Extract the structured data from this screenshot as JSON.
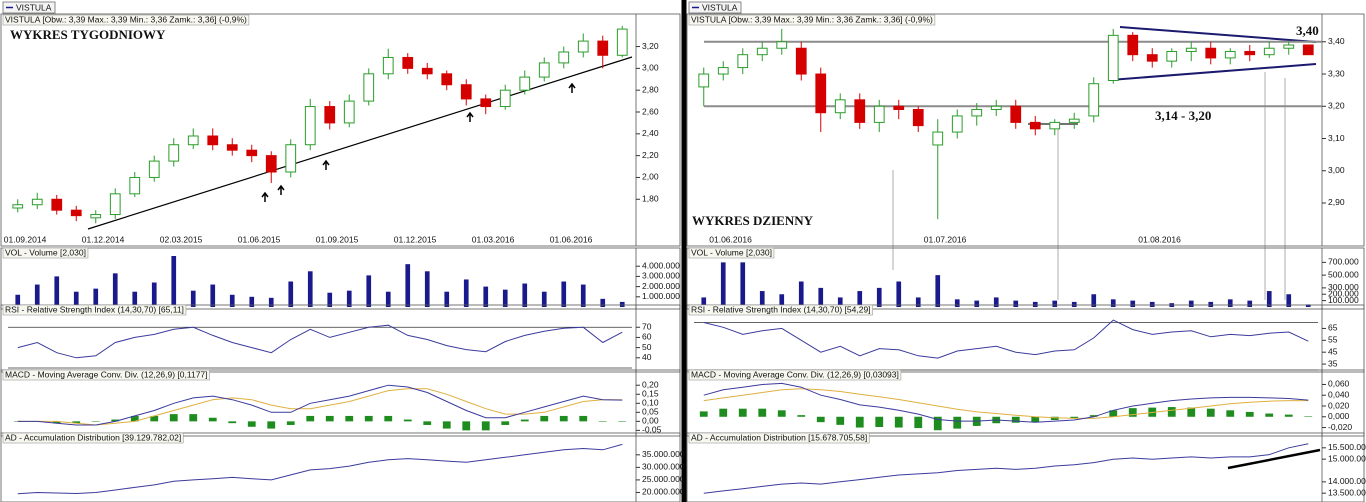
{
  "chart_data": [
    {
      "type": "candlestick",
      "tab": "VISTULA",
      "title": "VISTULA [Obw.: 3,39  Max.: 3,39  Min.: 3,36  Zamk.: 3,36] (-0,9%)",
      "annotations": [
        "WYKRES TYGODNIOWY"
      ],
      "categories": [
        "01.09.2014",
        null,
        null,
        null,
        "01.12.2014",
        null,
        null,
        null,
        "02.03.2015",
        null,
        null,
        null,
        "01.06.2015",
        null,
        null,
        null,
        "01.09.2015",
        null,
        null,
        null,
        "01.12.2015",
        null,
        null,
        null,
        "01.03.2016",
        null,
        null,
        null,
        "01.06.2016",
        null,
        null,
        null
      ],
      "open": [
        1.72,
        1.75,
        1.8,
        1.7,
        1.63,
        1.66,
        1.85,
        2.0,
        2.15,
        2.3,
        2.38,
        2.3,
        2.25,
        2.2,
        2.05,
        2.3,
        2.65,
        2.5,
        2.7,
        2.95,
        3.1,
        3.0,
        2.95,
        2.85,
        2.72,
        2.65,
        2.8,
        2.92,
        3.05,
        3.15,
        3.25,
        3.12
      ],
      "high": [
        1.8,
        1.86,
        1.84,
        1.74,
        1.7,
        1.9,
        2.05,
        2.2,
        2.36,
        2.45,
        2.45,
        2.36,
        2.3,
        2.24,
        2.35,
        2.72,
        2.7,
        2.76,
        3.0,
        3.18,
        3.14,
        3.05,
        2.98,
        2.9,
        2.76,
        2.85,
        2.98,
        3.1,
        3.2,
        3.32,
        3.3,
        3.39
      ],
      "low": [
        1.68,
        1.71,
        1.66,
        1.6,
        1.58,
        1.62,
        1.82,
        1.96,
        2.1,
        2.26,
        2.25,
        2.2,
        2.14,
        1.95,
        2.0,
        2.25,
        2.44,
        2.46,
        2.66,
        2.9,
        2.95,
        2.9,
        2.8,
        2.66,
        2.58,
        2.62,
        2.76,
        2.88,
        3.0,
        3.1,
        3.0,
        3.1
      ],
      "close": [
        1.75,
        1.8,
        1.7,
        1.65,
        1.66,
        1.85,
        2.0,
        2.15,
        2.3,
        2.38,
        2.3,
        2.25,
        2.2,
        2.05,
        2.3,
        2.65,
        2.5,
        2.7,
        2.95,
        3.1,
        3.0,
        2.95,
        2.85,
        2.72,
        2.65,
        2.8,
        2.92,
        3.05,
        3.15,
        3.25,
        3.12,
        3.36
      ],
      "up_color": "#2a9d2a",
      "down_color": "#d40000",
      "ylim": [
        1.5,
        3.48
      ],
      "yticks": [
        {
          "value": 3.2,
          "label": "3,20"
        },
        {
          "value": 3.0,
          "label": "3,00"
        },
        {
          "value": 2.8,
          "label": "2,80"
        },
        {
          "value": 2.6,
          "label": "2,60"
        },
        {
          "value": 2.4,
          "label": "2,40"
        },
        {
          "value": 2.2,
          "label": "2,20"
        },
        {
          "value": 2.0,
          "label": "2,00"
        },
        {
          "value": 1.8,
          "label": "1,80"
        }
      ]
    },
    {
      "type": "bar",
      "title": "VOL - Volume [2,030]",
      "color": "#1a1a8c",
      "values": [
        1200000,
        2200000,
        3000000,
        1500000,
        1800000,
        3300000,
        1500000,
        2400000,
        5000000,
        1600000,
        2200000,
        1200000,
        1000000,
        900000,
        2500000,
        3500000,
        1400000,
        1600000,
        3100000,
        1500000,
        4200000,
        3500000,
        1500000,
        2700000,
        2000000,
        1700000,
        2300000,
        1500000,
        2500000,
        2200000,
        800000,
        500000
      ],
      "ylim": [
        0,
        5000000
      ],
      "yticks": [
        {
          "value": 4000000,
          "label": "4.000.000"
        },
        {
          "value": 3000000,
          "label": "3.000.000"
        },
        {
          "value": 2000000,
          "label": "2.000.000"
        },
        {
          "value": 1000000,
          "label": "1.000.000"
        }
      ]
    },
    {
      "type": "line",
      "title": "RSI - Relative Strength Index (14,30,70) [65,11]",
      "color": "#3b3b9e",
      "values": [
        50,
        55,
        45,
        40,
        42,
        55,
        60,
        63,
        68,
        70,
        62,
        55,
        50,
        45,
        58,
        68,
        60,
        65,
        70,
        72,
        62,
        58,
        52,
        48,
        46,
        56,
        62,
        66,
        69,
        70,
        55,
        65.11
      ],
      "levels": [
        70,
        30
      ],
      "ylim": [
        28,
        84
      ],
      "yticks": [
        70,
        60,
        50,
        40
      ]
    },
    {
      "type": "macd",
      "title": "MACD - Moving Average Conv. Div. (12,26,9) [0,1177]",
      "macd_color": "#3b3b9e",
      "signal_color": "#e0b040",
      "histogram_color": "#1e8c1e",
      "macd": [
        0.0,
        0.0,
        -0.01,
        -0.02,
        -0.02,
        0.0,
        0.03,
        0.06,
        0.1,
        0.13,
        0.14,
        0.12,
        0.09,
        0.05,
        0.05,
        0.1,
        0.12,
        0.14,
        0.17,
        0.2,
        0.19,
        0.16,
        0.11,
        0.06,
        0.02,
        0.02,
        0.05,
        0.08,
        0.11,
        0.14,
        0.12,
        0.1177
      ],
      "signal": [
        0.0,
        0.0,
        0.0,
        -0.01,
        -0.02,
        -0.01,
        0.0,
        0.03,
        0.06,
        0.09,
        0.12,
        0.13,
        0.12,
        0.09,
        0.07,
        0.07,
        0.09,
        0.11,
        0.14,
        0.17,
        0.18,
        0.18,
        0.15,
        0.11,
        0.07,
        0.04,
        0.04,
        0.05,
        0.08,
        0.11,
        0.12,
        0.12
      ],
      "histogram": [
        0,
        0,
        -0.01,
        -0.01,
        0,
        0.01,
        0.03,
        0.03,
        0.04,
        0.04,
        0.02,
        -0.01,
        -0.03,
        -0.04,
        -0.02,
        0.03,
        0.03,
        0.03,
        0.03,
        0.03,
        0.01,
        -0.02,
        -0.04,
        -0.05,
        -0.05,
        -0.02,
        0.01,
        0.03,
        0.03,
        0.03,
        0,
        0
      ],
      "ylim": [
        -0.07,
        0.24
      ],
      "yticks": [
        {
          "value": 0.2,
          "label": "0,20"
        },
        {
          "value": 0.15,
          "label": "0,15"
        },
        {
          "value": 0.1,
          "label": "0,10"
        },
        {
          "value": 0.05,
          "label": "0,05"
        },
        {
          "value": 0,
          "label": "0,00"
        },
        {
          "value": -0.05,
          "label": "-0,05"
        }
      ]
    },
    {
      "type": "line",
      "title": "AD - Accumulation Distribution [39.129.782,02]",
      "color": "#3b3b9e",
      "values": [
        19500000,
        20000000,
        19800000,
        19600000,
        20000000,
        21000000,
        22000000,
        23000000,
        24500000,
        25000000,
        25500000,
        26000000,
        25500000,
        25000000,
        27000000,
        29000000,
        29500000,
        30500000,
        32000000,
        33000000,
        33500000,
        33000000,
        32500000,
        32000000,
        33000000,
        34000000,
        35000000,
        36000000,
        37000000,
        37500000,
        37000000,
        39129782
      ],
      "ylim": [
        17000000,
        40500000
      ],
      "yticks": [
        {
          "value": 35000000,
          "label": "35.000.000"
        },
        {
          "value": 30000000,
          "label": "30.000.000"
        },
        {
          "value": 25000000,
          "label": "25.000.000"
        },
        {
          "value": 20000000,
          "label": "20.000.000"
        }
      ]
    },
    {
      "type": "candlestick",
      "tab": "VISTULA",
      "title": "VISTULA [Obw.: 3,39  Max.: 3,39  Min.: 3,36  Zamk.: 3,36] (-0,9%)",
      "annotations": [
        "WYKRES DZIENNY",
        "3,40",
        "3,14 - 3,20"
      ],
      "categories": [
        null,
        "01.06.2016",
        null,
        null,
        null,
        null,
        null,
        null,
        null,
        null,
        null,
        null,
        "01.07.2016",
        null,
        null,
        null,
        null,
        null,
        null,
        null,
        null,
        null,
        null,
        "01.08.2016",
        null,
        null,
        null,
        null,
        null,
        null,
        null,
        null
      ],
      "open": [
        3.26,
        3.3,
        3.32,
        3.36,
        3.38,
        3.38,
        3.3,
        3.18,
        3.22,
        3.15,
        3.2,
        3.19,
        3.08,
        3.12,
        3.17,
        3.19,
        3.2,
        3.15,
        3.13,
        3.15,
        3.17,
        3.28,
        3.42,
        3.36,
        3.34,
        3.37,
        3.38,
        3.35,
        3.37,
        3.36,
        3.38,
        3.39
      ],
      "high": [
        3.32,
        3.34,
        3.38,
        3.4,
        3.44,
        3.4,
        3.32,
        3.24,
        3.24,
        3.22,
        3.22,
        3.2,
        3.16,
        3.19,
        3.21,
        3.22,
        3.22,
        3.17,
        3.16,
        3.18,
        3.29,
        3.44,
        3.43,
        3.38,
        3.38,
        3.4,
        3.4,
        3.38,
        3.39,
        3.4,
        3.4,
        3.39
      ],
      "low": [
        3.2,
        3.28,
        3.3,
        3.34,
        3.36,
        3.28,
        3.12,
        3.16,
        3.13,
        3.12,
        3.16,
        3.12,
        2.85,
        3.1,
        3.14,
        3.17,
        3.13,
        3.11,
        3.11,
        3.13,
        3.15,
        3.27,
        3.34,
        3.32,
        3.32,
        3.34,
        3.33,
        3.33,
        3.34,
        3.35,
        3.36,
        3.36
      ],
      "close": [
        3.3,
        3.32,
        3.36,
        3.38,
        3.4,
        3.3,
        3.18,
        3.22,
        3.15,
        3.2,
        3.19,
        3.14,
        3.12,
        3.17,
        3.19,
        3.2,
        3.15,
        3.13,
        3.15,
        3.16,
        3.27,
        3.42,
        3.36,
        3.34,
        3.37,
        3.38,
        3.35,
        3.37,
        3.36,
        3.38,
        3.39,
        3.36
      ],
      "up_color": "#2a9d2a",
      "down_color": "#d40000",
      "hlines": [
        3.4,
        3.2
      ],
      "hline_color": "#8c8c8c",
      "ylim": [
        2.81,
        3.48
      ],
      "yticks": [
        {
          "value": 3.4,
          "label": "3,40"
        },
        {
          "value": 3.3,
          "label": "3,30"
        },
        {
          "value": 3.2,
          "label": "3,20"
        },
        {
          "value": 3.1,
          "label": "3,10"
        },
        {
          "value": 3.0,
          "label": "3,00"
        },
        {
          "value": 2.9,
          "label": "2,90"
        }
      ]
    },
    {
      "type": "bar",
      "title": "VOL - Volume [2,030]",
      "color": "#1a1a8c",
      "values": [
        150000,
        700000,
        700000,
        250000,
        200000,
        400000,
        300000,
        150000,
        250000,
        300000,
        400000,
        150000,
        500000,
        120000,
        100000,
        150000,
        100000,
        80000,
        100000,
        80000,
        200000,
        120000,
        100000,
        80000,
        60000,
        100000,
        80000,
        120000,
        100000,
        250000,
        200000,
        40000
      ],
      "ylim": [
        0,
        800000
      ],
      "yticks": [
        {
          "value": 700000,
          "label": "700.000"
        },
        {
          "value": 500000,
          "label": "500.000"
        },
        {
          "value": 300000,
          "label": "300.000"
        },
        {
          "value": 200000,
          "label": "200.000"
        },
        {
          "value": 100000,
          "label": "100.000"
        }
      ]
    },
    {
      "type": "line",
      "title": "RSI - Relative Strength Index (14,30,70) [54,29]",
      "color": "#3b3b9e",
      "values": [
        70,
        66,
        60,
        63,
        65,
        55,
        45,
        50,
        42,
        48,
        47,
        42,
        40,
        46,
        48,
        50,
        45,
        43,
        46,
        47,
        57,
        72,
        64,
        60,
        62,
        63,
        58,
        60,
        59,
        61,
        62,
        54.29
      ],
      "levels": [
        70,
        30
      ],
      "ylim": [
        30,
        78
      ],
      "yticks": [
        65,
        55,
        45,
        35
      ]
    },
    {
      "type": "macd",
      "title": "MACD - Moving Average Conv. Div. (12,26,9) [0,03093]",
      "macd_color": "#3b3b9e",
      "signal_color": "#e0b040",
      "histogram_color": "#1e8c1e",
      "macd": [
        0.04,
        0.05,
        0.055,
        0.06,
        0.062,
        0.055,
        0.04,
        0.032,
        0.022,
        0.018,
        0.012,
        0.005,
        -0.005,
        -0.008,
        -0.008,
        -0.006,
        -0.008,
        -0.01,
        -0.008,
        -0.006,
        0.0,
        0.012,
        0.02,
        0.025,
        0.03,
        0.033,
        0.035,
        0.036,
        0.036,
        0.035,
        0.034,
        0.03093
      ],
      "signal": [
        0.03,
        0.035,
        0.04,
        0.045,
        0.05,
        0.052,
        0.05,
        0.047,
        0.042,
        0.037,
        0.032,
        0.026,
        0.02,
        0.014,
        0.009,
        0.006,
        0.003,
        0.0,
        -0.002,
        -0.003,
        -0.003,
        0.0,
        0.004,
        0.008,
        0.012,
        0.016,
        0.02,
        0.024,
        0.027,
        0.029,
        0.03,
        0.03
      ],
      "histogram": [
        0.01,
        0.015,
        0.015,
        0.015,
        0.012,
        0.003,
        -0.01,
        -0.015,
        -0.02,
        -0.019,
        -0.02,
        -0.021,
        -0.025,
        -0.022,
        -0.017,
        -0.012,
        -0.011,
        -0.01,
        -0.006,
        -0.003,
        0.003,
        0.012,
        0.016,
        0.017,
        0.018,
        0.017,
        0.015,
        0.012,
        0.009,
        0.006,
        0.004,
        0.001
      ],
      "ylim": [
        -0.032,
        0.072
      ],
      "yticks": [
        {
          "value": 0.06,
          "label": "0,060"
        },
        {
          "value": 0.04,
          "label": "0,040"
        },
        {
          "value": 0.02,
          "label": "0,020"
        },
        {
          "value": 0,
          "label": "0,000"
        },
        {
          "value": -0.02,
          "label": "-0,020"
        }
      ]
    },
    {
      "type": "line",
      "title": "AD - Accumulation Distribution [15.678.705,58]",
      "color": "#3b3b9e",
      "values": [
        13500000,
        13600000,
        13700000,
        13800000,
        13900000,
        13950000,
        13900000,
        14000000,
        14100000,
        14200000,
        14300000,
        14350000,
        14400000,
        14500000,
        14550000,
        14600000,
        14550000,
        14600000,
        14700000,
        14750000,
        14850000,
        15000000,
        15050000,
        15000000,
        15050000,
        15100000,
        15050000,
        15100000,
        15100000,
        15200000,
        15500000,
        15678705
      ],
      "ylim": [
        13200000,
        15800000
      ],
      "yticks": [
        {
          "value": 15500000,
          "label": "15.500.000"
        },
        {
          "value": 15000000,
          "label": "15.000.000"
        },
        {
          "value": 14000000,
          "label": "14.000.000"
        },
        {
          "value": 13500000,
          "label": "13.500.000"
        }
      ]
    }
  ]
}
